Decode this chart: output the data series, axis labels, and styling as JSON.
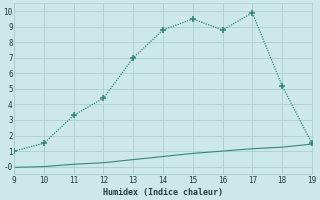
{
  "xlabel": "Humidex (Indice chaleur)",
  "ylabel": "",
  "x_all": [
    9,
    10,
    11,
    12,
    13,
    14,
    15,
    16,
    17,
    18,
    19
  ],
  "y_flat": [
    -0.05,
    0.0,
    0.15,
    0.25,
    0.45,
    0.65,
    0.85,
    1.0,
    1.15,
    1.25,
    1.45
  ],
  "line_color": "#2d8b74",
  "marker_color": "#2d8b74",
  "bg_color": "#cce8e8",
  "grid_color": "#aacfcf",
  "xlim": [
    9,
    19
  ],
  "ylim": [
    -0.5,
    10.5
  ],
  "xticks": [
    9,
    10,
    11,
    12,
    13,
    14,
    15,
    16,
    17,
    18,
    19
  ],
  "yticks": [
    0,
    1,
    2,
    3,
    4,
    5,
    6,
    7,
    8,
    9,
    10
  ],
  "ytick_labels": [
    "-0",
    "1",
    "2",
    "3",
    "4",
    "5",
    "6",
    "7",
    "8",
    "9",
    "10"
  ],
  "marker_x": [
    9,
    10,
    11,
    12,
    13,
    14,
    15,
    16,
    17,
    18,
    19
  ],
  "marker_y": [
    1.0,
    1.5,
    3.3,
    4.4,
    7.0,
    8.8,
    9.5,
    8.8,
    9.9,
    5.2,
    1.5
  ],
  "font_color": "#1e4040",
  "font_family": "monospace",
  "line_width": 1.0,
  "marker_size": 2.5
}
